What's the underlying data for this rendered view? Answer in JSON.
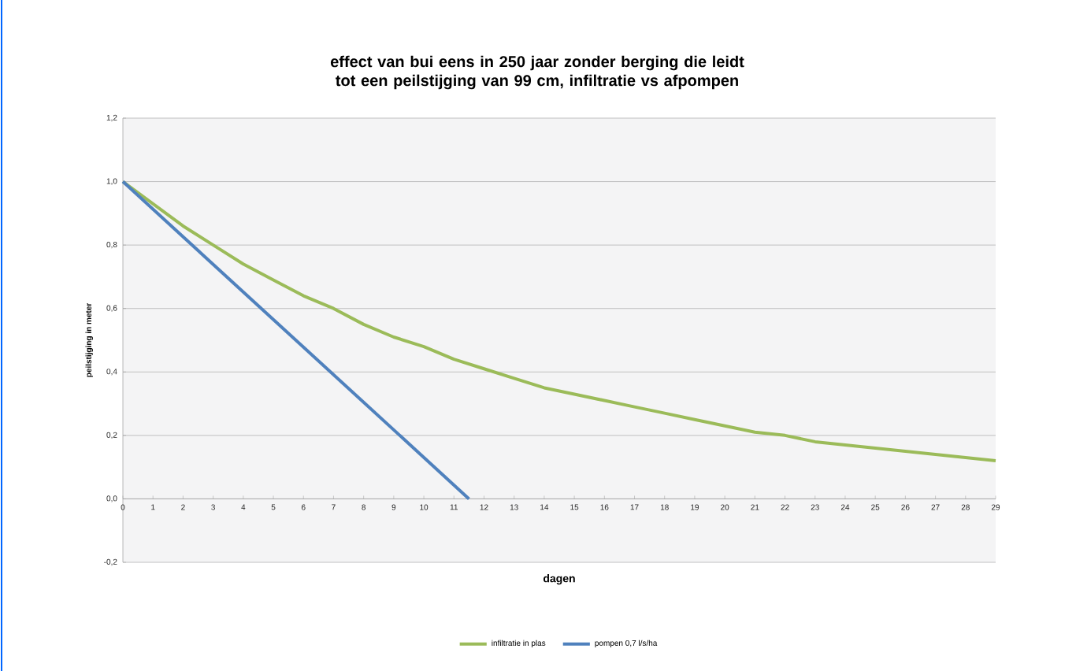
{
  "chart_data": {
    "type": "line",
    "title": "effect van bui eens in 250 jaar zonder berging die leidt tot een peilstijging van 99 cm, infiltratie vs afpompen",
    "xlabel": "dagen",
    "ylabel": "peilstijging in meter",
    "xlim": [
      0,
      29
    ],
    "xticks": [
      0,
      1,
      2,
      3,
      4,
      5,
      6,
      7,
      8,
      9,
      10,
      11,
      12,
      13,
      14,
      15,
      16,
      17,
      18,
      19,
      20,
      21,
      22,
      23,
      24,
      25,
      26,
      27,
      28,
      29
    ],
    "ylim": [
      -0.2,
      1.2
    ],
    "yticks": [
      {
        "value": -0.2,
        "label": "-0,2"
      },
      {
        "value": 0,
        "label": "0,0"
      },
      {
        "value": 0.2,
        "label": "0,2"
      },
      {
        "value": 0.4,
        "label": "0,4"
      },
      {
        "value": 0.6,
        "label": "0,6"
      },
      {
        "value": 0.8,
        "label": "0,8"
      },
      {
        "value": 1.0,
        "label": "1,0"
      },
      {
        "value": 1.2,
        "label": "1,2"
      }
    ],
    "grid": "y",
    "legend": "bottom",
    "marker": "none",
    "line_style": "solid",
    "series": [
      {
        "name": "infiltratie in plas",
        "color": "#9bbb59",
        "x": [
          0,
          1,
          2,
          3,
          4,
          5,
          6,
          7,
          8,
          9,
          10,
          11,
          12,
          13,
          14,
          15,
          16,
          17,
          18,
          19,
          20,
          21,
          22,
          23,
          24,
          25,
          26,
          27,
          28,
          29
        ],
        "values": [
          1.0,
          0.93,
          0.86,
          0.8,
          0.74,
          0.69,
          0.64,
          0.6,
          0.55,
          0.51,
          0.48,
          0.44,
          0.41,
          0.38,
          0.35,
          0.33,
          0.31,
          0.29,
          0.27,
          0.25,
          0.23,
          0.21,
          0.2,
          0.18,
          0.17,
          0.16,
          0.15,
          0.14,
          0.13,
          0.12
        ]
      },
      {
        "name": "pompen 0,7 l/s/ha",
        "color": "#4f81bd",
        "x": [
          0,
          11.5
        ],
        "values": [
          1.0,
          0.0
        ]
      }
    ]
  }
}
